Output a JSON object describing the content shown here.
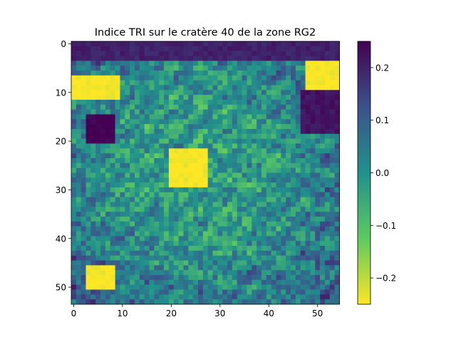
{
  "chart_data": {
    "type": "heatmap",
    "title": "Indice TRI sur le cratère 40 de la zone RG2",
    "xlabel": "",
    "ylabel": "",
    "grid": false,
    "n_cols": 55,
    "n_rows": 54,
    "xlim": [
      -0.5,
      54.5
    ],
    "ylim": [
      53.5,
      -0.5
    ],
    "x_ticks": [
      0,
      10,
      20,
      30,
      40,
      50
    ],
    "y_ticks": [
      0,
      10,
      20,
      30,
      40,
      50
    ],
    "colormap": "viridis_r",
    "colormap_stops": [
      "#440154",
      "#3b528b",
      "#21918c",
      "#5ec962",
      "#fde725"
    ],
    "colorbar": {
      "vmin": -0.25,
      "vmax": 0.25,
      "ticks": [
        0.2,
        0.1,
        0.0,
        -0.1,
        -0.2
      ],
      "tick_labels": [
        "0.2",
        "0.1",
        "0.0",
        "−0.1",
        "−0.2"
      ],
      "placement": "right"
    },
    "notable_regions": [
      {
        "desc": "central bright low-TRI patch",
        "rows": [
          22,
          29
        ],
        "cols": [
          20,
          27
        ],
        "value": -0.25
      },
      {
        "desc": "upper-left low-TRI patch",
        "rows": [
          7,
          11
        ],
        "cols": [
          0,
          9
        ],
        "value": -0.25
      },
      {
        "desc": "upper-right low-TRI patch",
        "rows": [
          4,
          9
        ],
        "cols": [
          48,
          54
        ],
        "value": -0.25
      },
      {
        "desc": "lower-left low-TRI patch",
        "rows": [
          46,
          50
        ],
        "cols": [
          3,
          8
        ],
        "value": -0.25
      },
      {
        "desc": "left high-TRI cluster",
        "rows": [
          15,
          20
        ],
        "cols": [
          3,
          8
        ],
        "value": 0.25
      },
      {
        "desc": "top high-TRI band",
        "rows": [
          0,
          3
        ],
        "cols": [
          0,
          54
        ],
        "value": 0.2
      },
      {
        "desc": "right high-TRI edge",
        "rows": [
          10,
          18
        ],
        "cols": [
          47,
          54
        ],
        "value": 0.22
      }
    ]
  }
}
